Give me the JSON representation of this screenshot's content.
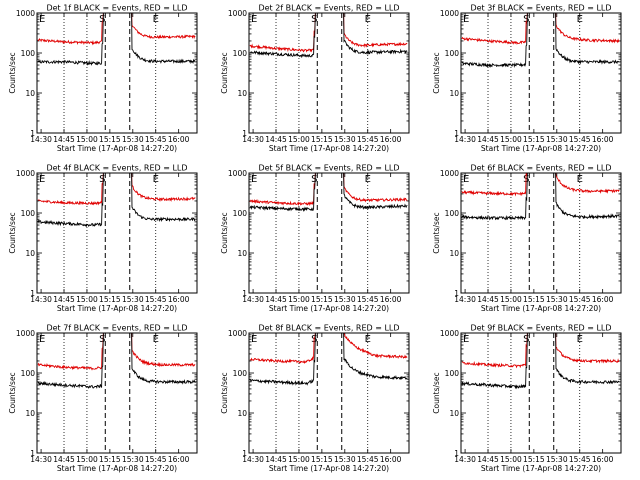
{
  "figure": {
    "time_axis_label": "Start Time (17-Apr-08 14:27:20)",
    "y_axis_label": "Counts/sec",
    "x_tick_labels": [
      "14:30",
      "14:45",
      "15:00",
      "15:15",
      "15:30",
      "15:45",
      "16:00"
    ],
    "y_tick_labels": [
      "1",
      "10",
      "100",
      "1000"
    ],
    "markers": {
      "start": "E",
      "middle": "S",
      "end": "E"
    },
    "colors": {
      "events": "#000000",
      "lld": "#e00000"
    }
  },
  "chart_data": [
    {
      "type": "line",
      "title": "Det 1f BLACK = Events, RED = LLD",
      "yscale": "log",
      "ylim": [
        1,
        1000
      ],
      "x_ticks": [
        "14:30",
        "14:45",
        "15:00",
        "15:15",
        "15:30",
        "15:45",
        "16:00"
      ],
      "events_levels": [
        60,
        60,
        55,
        60,
        62,
        62
      ],
      "lld_levels": [
        210,
        190,
        180,
        240,
        250,
        260
      ],
      "series": [
        {
          "name": "BLACK = Events"
        },
        {
          "name": "RED = LLD"
        }
      ]
    },
    {
      "type": "line",
      "title": "Det 2f BLACK = Events, RED = LLD",
      "yscale": "log",
      "ylim": [
        1,
        1000
      ],
      "x_ticks": [
        "14:30",
        "14:45",
        "15:00",
        "15:15",
        "15:30",
        "15:45",
        "16:00"
      ],
      "events_levels": [
        105,
        95,
        85,
        95,
        105,
        110
      ],
      "lld_levels": [
        150,
        130,
        115,
        140,
        160,
        170
      ],
      "series": [
        {
          "name": "BLACK = Events"
        },
        {
          "name": "RED = LLD"
        }
      ]
    },
    {
      "type": "line",
      "title": "Det 3f BLACK = Events, RED = LLD",
      "yscale": "log",
      "ylim": [
        1,
        1000
      ],
      "x_ticks": [
        "14:30",
        "14:45",
        "15:00",
        "15:15",
        "15:30",
        "15:45",
        "16:00"
      ],
      "events_levels": [
        55,
        50,
        50,
        60,
        60,
        60
      ],
      "lld_levels": [
        230,
        200,
        180,
        230,
        210,
        200
      ],
      "series": [
        {
          "name": "BLACK = Events"
        },
        {
          "name": "RED = LLD"
        }
      ]
    },
    {
      "type": "line",
      "title": "Det 4f BLACK = Events, RED = LLD",
      "yscale": "log",
      "ylim": [
        1,
        1000
      ],
      "x_ticks": [
        "14:30",
        "14:45",
        "15:00",
        "15:15",
        "15:30",
        "15:45",
        "16:00"
      ],
      "events_levels": [
        60,
        55,
        50,
        65,
        70,
        70
      ],
      "lld_levels": [
        200,
        180,
        175,
        220,
        220,
        230
      ],
      "series": [
        {
          "name": "BLACK = Events"
        },
        {
          "name": "RED = LLD"
        }
      ]
    },
    {
      "type": "line",
      "title": "Det 5f BLACK = Events, RED = LLD",
      "yscale": "log",
      "ylim": [
        1,
        1000
      ],
      "x_ticks": [
        "14:30",
        "14:45",
        "15:00",
        "15:15",
        "15:30",
        "15:45",
        "16:00"
      ],
      "events_levels": [
        140,
        130,
        125,
        130,
        140,
        150
      ],
      "lld_levels": [
        200,
        180,
        170,
        200,
        210,
        220
      ],
      "series": [
        {
          "name": "BLACK = Events"
        },
        {
          "name": "RED = LLD"
        }
      ]
    },
    {
      "type": "line",
      "title": "Det 6f BLACK = Events, RED = LLD",
      "yscale": "log",
      "ylim": [
        1,
        1000
      ],
      "x_ticks": [
        "14:30",
        "14:45",
        "15:00",
        "15:15",
        "15:30",
        "15:45",
        "16:00"
      ],
      "events_levels": [
        80,
        75,
        75,
        80,
        80,
        85
      ],
      "lld_levels": [
        330,
        310,
        300,
        380,
        350,
        360
      ],
      "series": [
        {
          "name": "BLACK = Events"
        },
        {
          "name": "RED = LLD"
        }
      ]
    },
    {
      "type": "line",
      "title": "Det 7f BLACK = Events, RED = LLD",
      "yscale": "log",
      "ylim": [
        1,
        1000
      ],
      "x_ticks": [
        "14:30",
        "14:45",
        "15:00",
        "15:15",
        "15:30",
        "15:45",
        "16:00"
      ],
      "events_levels": [
        55,
        50,
        45,
        60,
        60,
        60
      ],
      "lld_levels": [
        160,
        140,
        130,
        170,
        160,
        160
      ],
      "series": [
        {
          "name": "BLACK = Events"
        },
        {
          "name": "RED = LLD"
        }
      ]
    },
    {
      "type": "line",
      "title": "Det 8f BLACK = Events, RED = LLD",
      "yscale": "log",
      "ylim": [
        1,
        1000
      ],
      "x_ticks": [
        "14:30",
        "14:45",
        "15:00",
        "15:15",
        "15:30",
        "15:45",
        "16:00"
      ],
      "events_levels": [
        65,
        60,
        55,
        110,
        80,
        75
      ],
      "lld_levels": [
        220,
        200,
        190,
        450,
        270,
        250
      ],
      "series": [
        {
          "name": "BLACK = Events"
        },
        {
          "name": "RED = LLD"
        }
      ]
    },
    {
      "type": "line",
      "title": "Det 9f BLACK = Events, RED = LLD",
      "yscale": "log",
      "ylim": [
        1,
        1000
      ],
      "x_ticks": [
        "14:30",
        "14:45",
        "15:00",
        "15:15",
        "15:30",
        "15:45",
        "16:00"
      ],
      "events_levels": [
        55,
        50,
        45,
        60,
        60,
        60
      ],
      "lld_levels": [
        180,
        160,
        150,
        210,
        200,
        200
      ],
      "series": [
        {
          "name": "BLACK = Events"
        },
        {
          "name": "RED = LLD"
        }
      ]
    }
  ]
}
